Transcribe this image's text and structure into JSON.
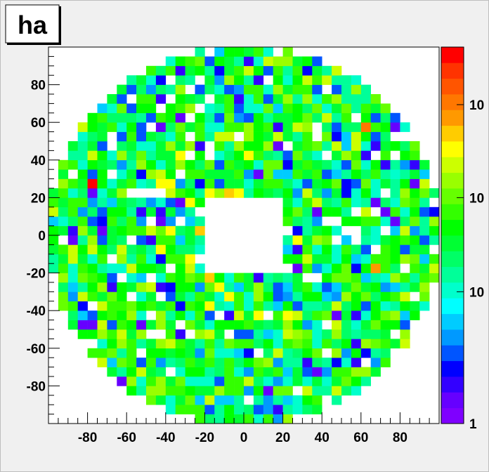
{
  "chart_data": {
    "type": "heatmap",
    "title": "ha",
    "xlabel": "",
    "ylabel": "",
    "x_ticks": [
      -80,
      -60,
      -40,
      -20,
      0,
      20,
      40,
      60,
      80
    ],
    "y_ticks": [
      80,
      60,
      40,
      20,
      0,
      -20,
      -40,
      -60,
      -80
    ],
    "colorbar_ticks": [
      {
        "label": "10",
        "level": 0.847
      },
      {
        "label": "10",
        "level": 0.6
      },
      {
        "label": "10",
        "level": 0.35
      },
      {
        "label": "1",
        "level": 0.0
      }
    ],
    "xlim": [
      -100,
      100
    ],
    "ylim": [
      -100,
      100
    ],
    "bins": 40,
    "bin_width": 5,
    "color_scale": "log",
    "grid": false,
    "palette": [
      "#7f00ff",
      "#6600ff",
      "#3300ff",
      "#0000ff",
      "#0055ff",
      "#0099ff",
      "#00ccff",
      "#00ffff",
      "#00ffcc",
      "#00ff99",
      "#00ff66",
      "#00ff33",
      "#00ff00",
      "#33ff00",
      "#66ff00",
      "#99ff00",
      "#ccff00",
      "#ffff00",
      "#ffcc00",
      "#ff9900",
      "#ff7700",
      "#ff5500",
      "#ff3300",
      "#ff0000"
    ],
    "hot_cells": [
      {
        "x": -77.5,
        "y": 27.5,
        "level": 23
      },
      {
        "x": 62.5,
        "y": 57.5,
        "level": 20
      },
      {
        "x": 67.5,
        "y": -17.5,
        "level": 19
      },
      {
        "x": -22.5,
        "y": 2.5,
        "level": 18
      },
      {
        "x": -17.5,
        "y": -22.5,
        "level": 18
      },
      {
        "x": 17.5,
        "y": -12.5,
        "level": 18
      },
      {
        "x": -7.5,
        "y": 22.5,
        "level": 18
      }
    ]
  }
}
